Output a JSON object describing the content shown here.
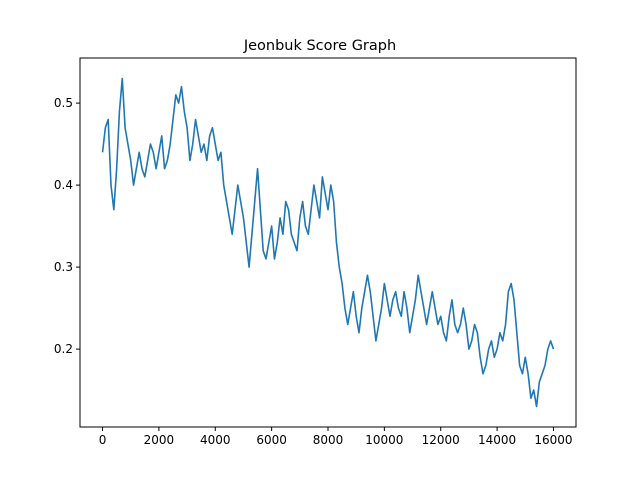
{
  "chart_data": {
    "type": "line",
    "title": "Jeonbuk Score Graph",
    "xlabel": "",
    "ylabel": "",
    "xlim": [
      -800,
      16800
    ],
    "ylim": [
      0.105,
      0.555
    ],
    "xticks": [
      0,
      2000,
      4000,
      6000,
      8000,
      10000,
      12000,
      14000,
      16000
    ],
    "yticks": [
      0.2,
      0.3,
      0.4,
      0.5
    ],
    "xtick_labels": [
      "0",
      "2000",
      "4000",
      "6000",
      "8000",
      "10000",
      "12000",
      "14000",
      "16000"
    ],
    "ytick_labels": [
      "0.2",
      "0.3",
      "0.4",
      "0.5"
    ],
    "grid": false,
    "legend": "none",
    "series": [
      {
        "color": "#1f77b4",
        "x": [
          0,
          100,
          200,
          300,
          400,
          500,
          600,
          700,
          800,
          900,
          1000,
          1100,
          1200,
          1300,
          1400,
          1500,
          1600,
          1700,
          1800,
          1900,
          2000,
          2100,
          2200,
          2300,
          2400,
          2500,
          2600,
          2700,
          2800,
          2900,
          3000,
          3100,
          3200,
          3300,
          3400,
          3500,
          3600,
          3700,
          3800,
          3900,
          4000,
          4100,
          4200,
          4300,
          4400,
          4500,
          4600,
          4700,
          4800,
          4900,
          5000,
          5100,
          5200,
          5300,
          5400,
          5500,
          5600,
          5700,
          5800,
          5900,
          6000,
          6100,
          6200,
          6300,
          6400,
          6500,
          6600,
          6700,
          6800,
          6900,
          7000,
          7100,
          7200,
          7300,
          7400,
          7500,
          7600,
          7700,
          7800,
          7900,
          8000,
          8100,
          8200,
          8300,
          8400,
          8500,
          8600,
          8700,
          8800,
          8900,
          9000,
          9100,
          9200,
          9300,
          9400,
          9500,
          9600,
          9700,
          9800,
          9900,
          10000,
          10100,
          10200,
          10300,
          10400,
          10500,
          10600,
          10700,
          10800,
          10900,
          11000,
          11100,
          11200,
          11300,
          11400,
          11500,
          11600,
          11700,
          11800,
          11900,
          12000,
          12100,
          12200,
          12300,
          12400,
          12500,
          12600,
          12700,
          12800,
          12900,
          13000,
          13100,
          13200,
          13300,
          13400,
          13500,
          13600,
          13700,
          13800,
          13900,
          14000,
          14100,
          14200,
          14300,
          14400,
          14500,
          14600,
          14700,
          14800,
          14900,
          15000,
          15100,
          15200,
          15300,
          15400,
          15500,
          15600,
          15700,
          15800,
          15900,
          16000
        ],
        "y": [
          0.44,
          0.47,
          0.48,
          0.4,
          0.37,
          0.42,
          0.49,
          0.53,
          0.47,
          0.45,
          0.43,
          0.4,
          0.42,
          0.44,
          0.42,
          0.41,
          0.43,
          0.45,
          0.44,
          0.42,
          0.44,
          0.46,
          0.42,
          0.43,
          0.45,
          0.48,
          0.51,
          0.5,
          0.52,
          0.49,
          0.47,
          0.43,
          0.45,
          0.48,
          0.46,
          0.44,
          0.45,
          0.43,
          0.46,
          0.47,
          0.45,
          0.43,
          0.44,
          0.4,
          0.38,
          0.36,
          0.34,
          0.37,
          0.4,
          0.38,
          0.36,
          0.33,
          0.3,
          0.34,
          0.38,
          0.42,
          0.37,
          0.32,
          0.31,
          0.33,
          0.35,
          0.31,
          0.33,
          0.36,
          0.34,
          0.38,
          0.37,
          0.34,
          0.33,
          0.32,
          0.36,
          0.38,
          0.35,
          0.34,
          0.37,
          0.4,
          0.38,
          0.36,
          0.41,
          0.39,
          0.37,
          0.4,
          0.38,
          0.33,
          0.3,
          0.28,
          0.25,
          0.23,
          0.25,
          0.27,
          0.24,
          0.22,
          0.25,
          0.27,
          0.29,
          0.27,
          0.24,
          0.21,
          0.23,
          0.25,
          0.28,
          0.26,
          0.24,
          0.26,
          0.27,
          0.25,
          0.24,
          0.27,
          0.25,
          0.22,
          0.24,
          0.26,
          0.29,
          0.27,
          0.25,
          0.23,
          0.25,
          0.27,
          0.25,
          0.23,
          0.24,
          0.22,
          0.21,
          0.24,
          0.26,
          0.23,
          0.22,
          0.23,
          0.25,
          0.23,
          0.2,
          0.21,
          0.23,
          0.22,
          0.19,
          0.17,
          0.18,
          0.2,
          0.21,
          0.19,
          0.2,
          0.22,
          0.21,
          0.23,
          0.27,
          0.28,
          0.26,
          0.22,
          0.18,
          0.17,
          0.19,
          0.17,
          0.14,
          0.15,
          0.13,
          0.16,
          0.17,
          0.18,
          0.2,
          0.21,
          0.2
        ]
      }
    ]
  }
}
